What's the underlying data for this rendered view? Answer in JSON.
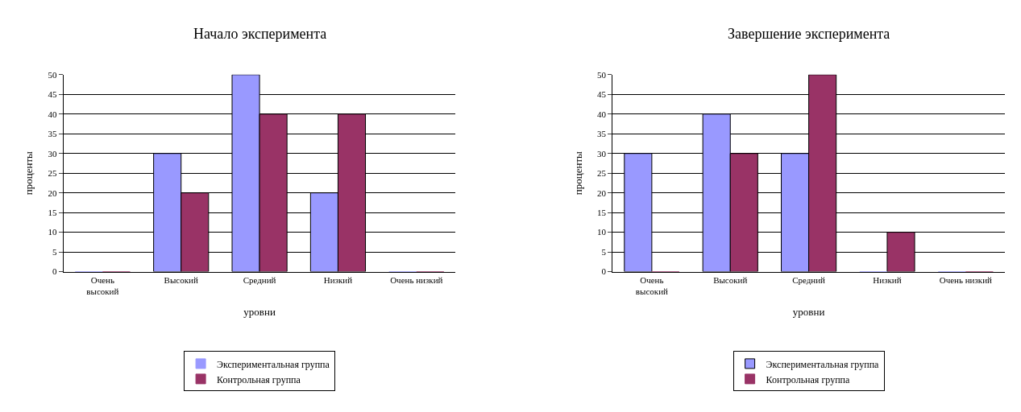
{
  "chart_data": [
    {
      "type": "bar",
      "title": "Начало эксперимента",
      "xlabel": "уровни",
      "ylabel": "проценты",
      "categories": [
        "Очень высокий",
        "Высокий",
        "Средний",
        "Низкий",
        "Очень низкий"
      ],
      "series": [
        {
          "name": "Экспериментальная группа",
          "color": "#9999ff",
          "values": [
            0,
            30,
            50,
            20,
            0
          ]
        },
        {
          "name": "Контрольная группа",
          "color": "#993366",
          "values": [
            0,
            20,
            40,
            40,
            0
          ]
        }
      ],
      "ylim": [
        0,
        50
      ],
      "yticks": [
        0,
        5,
        10,
        15,
        20,
        25,
        30,
        35,
        40,
        45,
        50
      ],
      "grid": "y",
      "legend": "bottom"
    },
    {
      "type": "bar",
      "title": "Завершение эксперимента",
      "xlabel": "уровни",
      "ylabel": "проценты",
      "categories": [
        "Очень высокий",
        "Высокий",
        "Средний",
        "Низкий",
        "Очень низкий"
      ],
      "series": [
        {
          "name": "Экспериментальная группа",
          "color": "#9999ff",
          "values": [
            30,
            40,
            30,
            0,
            0
          ]
        },
        {
          "name": "Контрольная группа",
          "color": "#993366",
          "values": [
            0,
            30,
            50,
            10,
            0
          ]
        }
      ],
      "ylim": [
        0,
        50
      ],
      "yticks": [
        0,
        5,
        10,
        15,
        20,
        25,
        30,
        35,
        40,
        45,
        50
      ],
      "grid": "y",
      "legend": "bottom"
    }
  ]
}
